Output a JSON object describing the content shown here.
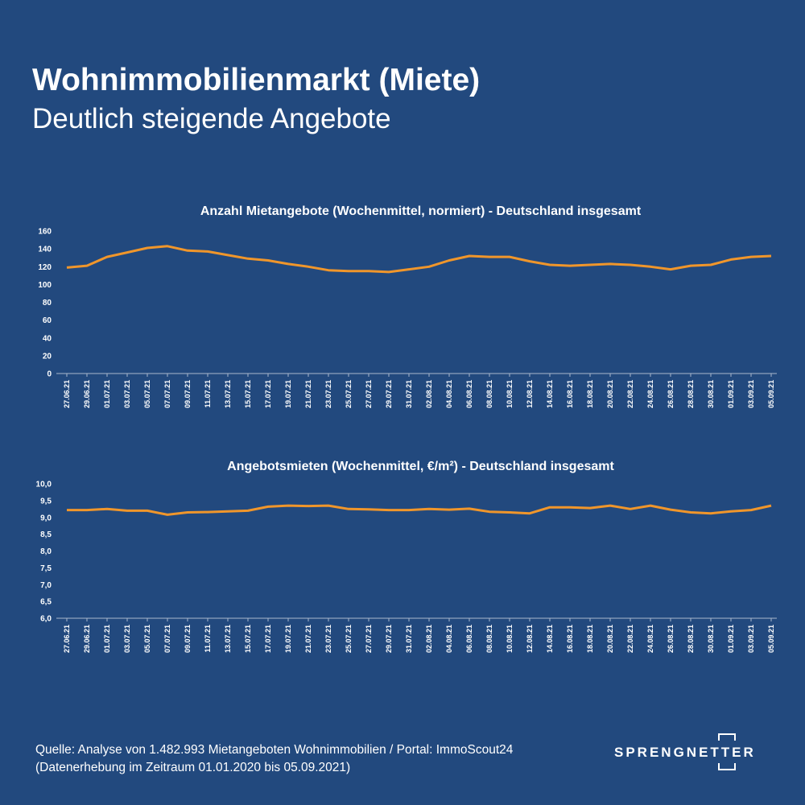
{
  "header": {
    "title": "Wohnimmobilienmarkt (Miete)",
    "subtitle": "Deutlich steigende Angebote"
  },
  "chart_data": [
    {
      "type": "line",
      "title": "Anzahl Mietangebote (Wochenmittel, normiert) - Deutschland insgesamt",
      "categories": [
        "27.06.21",
        "29.06.21",
        "01.07.21",
        "03.07.21",
        "05.07.21",
        "07.07.21",
        "09.07.21",
        "11.07.21",
        "13.07.21",
        "15.07.21",
        "17.07.21",
        "19.07.21",
        "21.07.21",
        "23.07.21",
        "25.07.21",
        "27.07.21",
        "29.07.21",
        "31.07.21",
        "02.08.21",
        "04.08.21",
        "06.08.21",
        "08.08.21",
        "10.08.21",
        "12.08.21",
        "14.08.21",
        "16.08.21",
        "18.08.21",
        "20.08.21",
        "22.08.21",
        "24.08.21",
        "26.08.21",
        "28.08.21",
        "30.08.21",
        "01.09.21",
        "03.09.21",
        "05.09.21"
      ],
      "values": [
        119,
        121,
        131,
        136,
        141,
        143,
        138,
        137,
        133,
        129,
        127,
        123,
        120,
        116,
        115,
        115,
        114,
        117,
        120,
        127,
        132,
        131,
        131,
        126,
        122,
        121,
        122,
        123,
        122,
        120,
        117,
        121,
        122,
        128,
        131,
        132
      ],
      "color": "#f0962b",
      "ylim": [
        0,
        160
      ],
      "yticks": [
        0,
        20,
        40,
        60,
        80,
        100,
        120,
        140,
        160
      ],
      "grid": false
    },
    {
      "type": "line",
      "title": "Angebotsmieten (Wochenmittel, €/m²) - Deutschland insgesamt",
      "categories": [
        "27.06.21",
        "29.06.21",
        "01.07.21",
        "03.07.21",
        "05.07.21",
        "07.07.21",
        "09.07.21",
        "11.07.21",
        "13.07.21",
        "15.07.21",
        "17.07.21",
        "19.07.21",
        "21.07.21",
        "23.07.21",
        "25.07.21",
        "27.07.21",
        "29.07.21",
        "31.07.21",
        "02.08.21",
        "04.08.21",
        "06.08.21",
        "08.08.21",
        "10.08.21",
        "12.08.21",
        "14.08.21",
        "16.08.21",
        "18.08.21",
        "20.08.21",
        "22.08.21",
        "24.08.21",
        "26.08.21",
        "28.08.21",
        "30.08.21",
        "01.09.21",
        "03.09.21",
        "05.09.21"
      ],
      "values": [
        9.22,
        9.22,
        9.25,
        9.2,
        9.2,
        9.08,
        9.15,
        9.16,
        9.18,
        9.2,
        9.32,
        9.35,
        9.34,
        9.35,
        9.25,
        9.24,
        9.22,
        9.22,
        9.25,
        9.23,
        9.26,
        9.17,
        9.15,
        9.12,
        9.3,
        9.3,
        9.28,
        9.35,
        9.25,
        9.35,
        9.23,
        9.15,
        9.12,
        9.18,
        9.22,
        9.35
      ],
      "color": "#f0962b",
      "ylim": [
        6,
        10
      ],
      "yticks": [
        {
          "value": 6,
          "label": "6,0"
        },
        {
          "value": 6.5,
          "label": "6,5"
        },
        {
          "value": 7,
          "label": "7,0"
        },
        {
          "value": 7.5,
          "label": "7,5"
        },
        {
          "value": 8,
          "label": "8,0"
        },
        {
          "value": 8.5,
          "label": "8,5"
        },
        {
          "value": 9,
          "label": "9,0"
        },
        {
          "value": 9.5,
          "label": "9,5"
        },
        {
          "value": 10,
          "label": "10,0"
        }
      ],
      "grid": false
    }
  ],
  "footer": {
    "source": "Quelle: Analyse von 1.482.993 Mietangeboten Wohnimmobilien / Portal: ImmoScout24",
    "period": "(Datenerhebung im Zeitraum 01.01.2020 bis  05.09.2021)"
  },
  "logo": "SPRENGNETTER"
}
